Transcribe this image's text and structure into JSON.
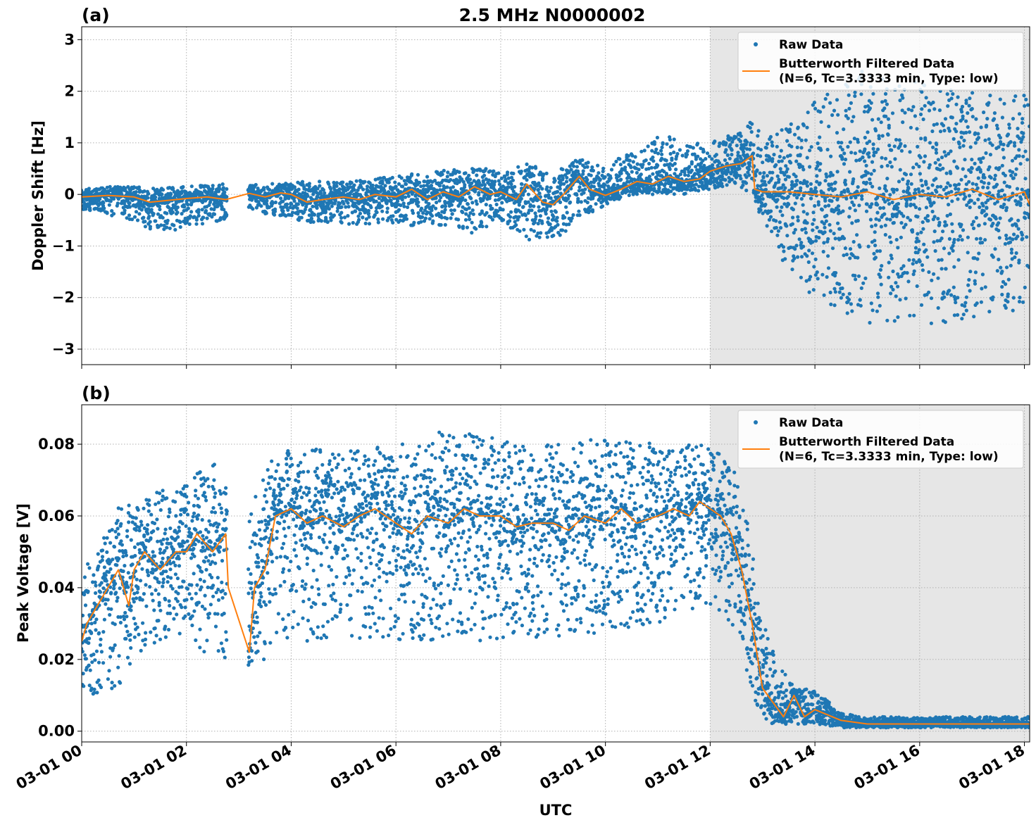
{
  "title": "2.5 MHz N0000002",
  "colors": {
    "raw": "#1f77b4",
    "filtered": "#ff7f0e",
    "shade": "#e6e6e6",
    "grid": "#b0b0b0"
  },
  "chart_data": [
    {
      "panel_label": "(a)",
      "type": "scatter",
      "ylabel": "Doppler Shift [Hz]",
      "ylim": [
        -3.3,
        3.25
      ],
      "yticks": [
        -3,
        -2,
        -1,
        0,
        1,
        2,
        3
      ],
      "ytick_labels": [
        "−3",
        "−2",
        "−1",
        "0",
        "1",
        "2",
        "3"
      ],
      "shaded_interval_hours": [
        12.0,
        18.1
      ],
      "legend": {
        "placement": "top-right",
        "raw": "Raw Data",
        "filtered_line1": "Butterworth Filtered Data",
        "filtered_line2": "(N=6, Tc=3.3333 min, Type: low)"
      },
      "filtered_series": {
        "name": "Butterworth Filtered Data",
        "x_hours": [
          0,
          0.5,
          1.0,
          1.3,
          1.6,
          2.0,
          2.4,
          2.75,
          3.2,
          3.5,
          3.8,
          4.0,
          4.3,
          4.6,
          5.0,
          5.3,
          5.6,
          6.0,
          6.3,
          6.6,
          6.9,
          7.2,
          7.5,
          7.8,
          8.0,
          8.3,
          8.5,
          8.8,
          9.0,
          9.2,
          9.5,
          9.7,
          10.0,
          10.3,
          10.6,
          10.9,
          11.2,
          11.5,
          11.8,
          12.0,
          12.3,
          12.6,
          12.8,
          12.85,
          13.0,
          13.5,
          14.0,
          14.5,
          15.0,
          15.5,
          16.0,
          16.5,
          17.0,
          17.5,
          18.0,
          18.1
        ],
        "y": [
          -0.05,
          -0.02,
          -0.05,
          -0.15,
          -0.12,
          -0.08,
          -0.05,
          -0.1,
          0.02,
          -0.05,
          0.03,
          0.0,
          -0.15,
          -0.1,
          -0.05,
          -0.1,
          0.0,
          -0.05,
          0.1,
          -0.1,
          0.05,
          -0.05,
          0.15,
          0.0,
          0.05,
          -0.1,
          0.2,
          -0.15,
          -0.2,
          0.0,
          0.35,
          0.1,
          -0.02,
          0.1,
          0.25,
          0.2,
          0.35,
          0.25,
          0.3,
          0.45,
          0.55,
          0.6,
          0.75,
          0.1,
          0.05,
          0.05,
          0.0,
          -0.05,
          0.05,
          -0.1,
          0.0,
          -0.05,
          0.1,
          -0.1,
          0.05,
          -0.2
        ]
      },
      "raw_series": {
        "name": "Raw Data",
        "envelope_hours": [
          0,
          0.5,
          1.0,
          1.5,
          2.0,
          2.5,
          2.75,
          3.2,
          4.0,
          5.0,
          6.0,
          7.0,
          7.5,
          8.0,
          8.5,
          9.0,
          9.5,
          10.0,
          10.5,
          11.0,
          11.5,
          12.0,
          12.5,
          12.85,
          13.0,
          13.5,
          14.0,
          15.0,
          16.0,
          17.0,
          18.0,
          18.1
        ],
        "envelope_max": [
          0.1,
          0.15,
          0.15,
          0.12,
          0.15,
          0.2,
          0.2,
          0.2,
          0.25,
          0.25,
          0.35,
          0.5,
          0.6,
          0.4,
          0.6,
          0.4,
          0.7,
          0.5,
          0.9,
          1.2,
          1.0,
          1.0,
          1.2,
          1.6,
          1.0,
          1.4,
          1.8,
          2.5,
          2.2,
          2.0,
          2.0,
          1.9
        ],
        "envelope_min": [
          -0.3,
          -0.4,
          -0.5,
          -0.8,
          -0.6,
          -0.6,
          -0.5,
          -0.3,
          -0.5,
          -0.6,
          -0.6,
          -0.6,
          -0.8,
          -0.5,
          -0.9,
          -0.9,
          -0.5,
          -0.2,
          0.0,
          0.0,
          0.0,
          0.1,
          0.2,
          -0.1,
          -0.5,
          -1.5,
          -2.0,
          -2.5,
          -2.5,
          -2.5,
          -2.2,
          -2.2
        ]
      }
    },
    {
      "panel_label": "(b)",
      "type": "scatter",
      "ylabel": "Peak Voltage [V]",
      "xlabel": "UTC",
      "ylim": [
        -0.003,
        0.091
      ],
      "yticks": [
        0.0,
        0.02,
        0.04,
        0.06,
        0.08
      ],
      "ytick_labels": [
        "0.00",
        "0.02",
        "0.04",
        "0.06",
        "0.08"
      ],
      "xlim_hours": [
        0,
        18.1
      ],
      "xticks_hours": [
        0,
        2,
        4,
        6,
        8,
        10,
        12,
        14,
        16,
        18
      ],
      "xtick_labels": [
        "03-01 00",
        "03-01 02",
        "03-01 04",
        "03-01 06",
        "03-01 08",
        "03-01 10",
        "03-01 12",
        "03-01 14",
        "03-01 16",
        "03-01 18"
      ],
      "shaded_interval_hours": [
        12.0,
        18.1
      ],
      "legend": {
        "placement": "top-right",
        "raw": "Raw Data",
        "filtered_line1": "Butterworth Filtered Data",
        "filtered_line2": "(N=6, Tc=3.3333 min, Type: low)"
      },
      "filtered_series": {
        "name": "Butterworth Filtered Data",
        "x_hours": [
          0,
          0.1,
          0.3,
          0.5,
          0.7,
          0.9,
          1.0,
          1.2,
          1.5,
          1.8,
          2.0,
          2.2,
          2.5,
          2.75,
          2.8,
          3.2,
          3.3,
          3.5,
          3.7,
          4.0,
          4.3,
          4.6,
          5.0,
          5.3,
          5.6,
          6.0,
          6.3,
          6.6,
          7.0,
          7.3,
          7.6,
          8.0,
          8.3,
          8.6,
          9.0,
          9.3,
          9.6,
          10.0,
          10.3,
          10.6,
          11.0,
          11.3,
          11.6,
          11.8,
          12.0,
          12.2,
          12.4,
          12.6,
          12.8,
          13.0,
          13.2,
          13.4,
          13.6,
          13.8,
          14.0,
          14.5,
          15.0,
          16.0,
          17.0,
          18.0,
          18.1
        ],
        "y": [
          0.025,
          0.03,
          0.035,
          0.04,
          0.045,
          0.035,
          0.045,
          0.05,
          0.045,
          0.05,
          0.05,
          0.055,
          0.05,
          0.055,
          0.04,
          0.022,
          0.04,
          0.045,
          0.06,
          0.062,
          0.058,
          0.06,
          0.057,
          0.06,
          0.062,
          0.058,
          0.055,
          0.06,
          0.058,
          0.062,
          0.06,
          0.06,
          0.057,
          0.058,
          0.058,
          0.056,
          0.06,
          0.058,
          0.062,
          0.058,
          0.06,
          0.062,
          0.06,
          0.064,
          0.062,
          0.06,
          0.055,
          0.045,
          0.03,
          0.012,
          0.008,
          0.004,
          0.01,
          0.004,
          0.006,
          0.003,
          0.002,
          0.002,
          0.002,
          0.002,
          0.002
        ]
      },
      "raw_series": {
        "name": "Raw Data",
        "envelope_hours": [
          0,
          0.3,
          0.7,
          1.0,
          1.5,
          2.0,
          2.5,
          2.75,
          3.2,
          3.5,
          4.0,
          5.0,
          6.0,
          7.0,
          8.0,
          9.0,
          10.0,
          11.0,
          11.8,
          12.0,
          12.4,
          12.7,
          13.0,
          13.3,
          13.6,
          14.0,
          14.5,
          15.0,
          16.0,
          17.0,
          18.0,
          18.1
        ],
        "envelope_max": [
          0.045,
          0.05,
          0.065,
          0.062,
          0.068,
          0.07,
          0.075,
          0.072,
          0.06,
          0.075,
          0.08,
          0.078,
          0.08,
          0.085,
          0.082,
          0.08,
          0.082,
          0.08,
          0.08,
          0.08,
          0.075,
          0.06,
          0.03,
          0.02,
          0.012,
          0.012,
          0.005,
          0.004,
          0.004,
          0.004,
          0.004,
          0.004
        ],
        "envelope_min": [
          0.008,
          0.01,
          0.012,
          0.02,
          0.025,
          0.025,
          0.02,
          0.02,
          0.018,
          0.02,
          0.025,
          0.025,
          0.025,
          0.025,
          0.025,
          0.025,
          0.028,
          0.03,
          0.035,
          0.035,
          0.03,
          0.015,
          0.002,
          0.002,
          0.002,
          0.002,
          0.001,
          0.001,
          0.001,
          0.001,
          0.001,
          0.001
        ]
      }
    }
  ]
}
